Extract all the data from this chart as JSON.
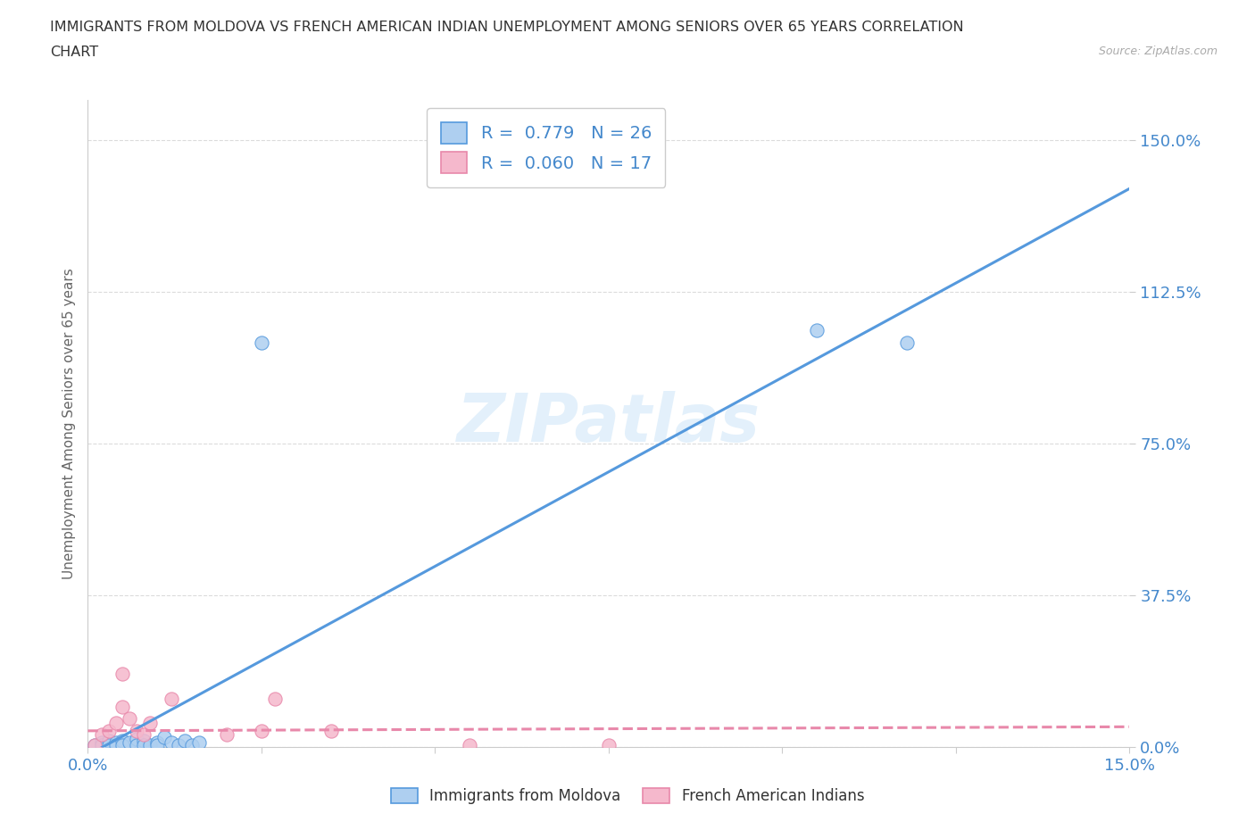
{
  "title_line1": "IMMIGRANTS FROM MOLDOVA VS FRENCH AMERICAN INDIAN UNEMPLOYMENT AMONG SENIORS OVER 65 YEARS CORRELATION",
  "title_line2": "CHART",
  "source": "Source: ZipAtlas.com",
  "ylabel": "Unemployment Among Seniors over 65 years",
  "xlim": [
    0.0,
    0.15
  ],
  "ylim": [
    0.0,
    1.6
  ],
  "yticks": [
    0.0,
    0.375,
    0.75,
    1.125,
    1.5
  ],
  "ytick_labels": [
    "0.0%",
    "37.5%",
    "75.0%",
    "112.5%",
    "150.0%"
  ],
  "xticks": [
    0.0,
    0.025,
    0.05,
    0.075,
    0.1,
    0.125,
    0.15
  ],
  "xtick_labels": [
    "0.0%",
    "",
    "",
    "",
    "",
    "",
    "15.0%"
  ],
  "legend_text1": "R =  0.779   N = 26",
  "legend_text2": "R =  0.060   N = 17",
  "series1_color": "#aecff0",
  "series2_color": "#f5b8cc",
  "line1_color": "#5599dd",
  "line2_color": "#e888aa",
  "watermark": "ZIPatlas",
  "blue_scatter_x": [
    0.001,
    0.002,
    0.002,
    0.003,
    0.003,
    0.004,
    0.004,
    0.005,
    0.005,
    0.006,
    0.007,
    0.007,
    0.008,
    0.008,
    0.009,
    0.01,
    0.01,
    0.011,
    0.012,
    0.013,
    0.014,
    0.015,
    0.016,
    0.025,
    0.105,
    0.118
  ],
  "blue_scatter_y": [
    0.005,
    0.01,
    0.005,
    0.015,
    0.005,
    0.01,
    0.005,
    0.015,
    0.005,
    0.01,
    0.02,
    0.005,
    0.015,
    0.005,
    0.005,
    0.01,
    0.005,
    0.025,
    0.01,
    0.005,
    0.015,
    0.005,
    0.01,
    1.0,
    1.03,
    1.0
  ],
  "pink_scatter_x": [
    0.001,
    0.002,
    0.003,
    0.004,
    0.005,
    0.005,
    0.006,
    0.007,
    0.008,
    0.009,
    0.012,
    0.02,
    0.025,
    0.027,
    0.035,
    0.055,
    0.075
  ],
  "pink_scatter_y": [
    0.005,
    0.03,
    0.04,
    0.06,
    0.18,
    0.1,
    0.07,
    0.04,
    0.03,
    0.06,
    0.12,
    0.03,
    0.04,
    0.12,
    0.04,
    0.005,
    0.005
  ],
  "blue_line_x0": 0.0,
  "blue_line_y0": -0.02,
  "blue_line_x1": 0.15,
  "blue_line_y1": 1.38,
  "pink_line_x0": 0.0,
  "pink_line_y0": 0.04,
  "pink_line_x1": 0.15,
  "pink_line_y1": 0.05,
  "scatter_size": 120
}
